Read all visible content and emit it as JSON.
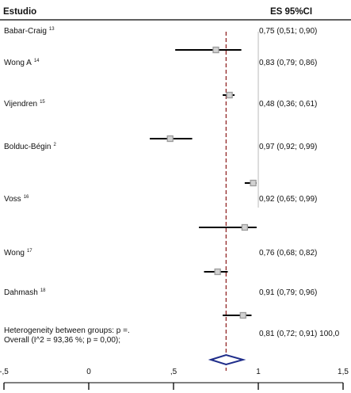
{
  "header": {
    "study_col": "Estudio",
    "es_col": "ES 95%CI"
  },
  "chart_data": {
    "type": "forest",
    "studies": [
      {
        "name": "Babar-Craig",
        "ref": "13",
        "estimate": 0.75,
        "lower": 0.51,
        "upper": 0.9,
        "label": "0,75 (0,51; 0,90)"
      },
      {
        "name": "Wong A",
        "ref": "14",
        "estimate": 0.83,
        "lower": 0.79,
        "upper": 0.86,
        "label": "0,83 (0,79; 0,86)"
      },
      {
        "name": "Vijendren",
        "ref": "15",
        "estimate": 0.48,
        "lower": 0.36,
        "upper": 0.61,
        "label": "0,48 (0,36; 0,61)"
      },
      {
        "name": "Bolduc-Bégin",
        "ref": "2",
        "estimate": 0.97,
        "lower": 0.92,
        "upper": 0.99,
        "label": "0,97 (0,92; 0,99)"
      },
      {
        "name": "Voss",
        "ref": "16",
        "estimate": 0.92,
        "lower": 0.65,
        "upper": 0.99,
        "label": "0,92 (0,65; 0,99)"
      },
      {
        "name": "Wong",
        "ref": "17",
        "estimate": 0.76,
        "lower": 0.68,
        "upper": 0.82,
        "label": "0,76 (0,68; 0,82)"
      },
      {
        "name": "Dahmash",
        "ref": "18",
        "estimate": 0.91,
        "lower": 0.79,
        "upper": 0.96,
        "label": "0,91 (0,79; 0,96)"
      }
    ],
    "overall": {
      "line1": "Heterogeneity between groups: p =.",
      "line2": "Overall (I^2 = 93,36 %; p = 0,00);",
      "estimate": 0.81,
      "lower": 0.72,
      "upper": 0.91,
      "label": "0,81 (0,72; 0,91) 100,0"
    },
    "x_ticks": [
      {
        "value": -0.5,
        "label": "-,5"
      },
      {
        "value": 0,
        "label": "0"
      },
      {
        "value": 0.5,
        "label": ",5"
      },
      {
        "value": 1,
        "label": "1"
      },
      {
        "value": 1.5,
        "label": "1,5"
      }
    ],
    "xlim": [
      -0.5,
      1.5
    ],
    "reference_line": 0.81,
    "colors": {
      "ci_line": "#000000",
      "marker": "#9a9a9a",
      "reference": "#8b1a1a",
      "diamond": "#1f2d8a",
      "null_line": "#b9b9b9"
    }
  }
}
